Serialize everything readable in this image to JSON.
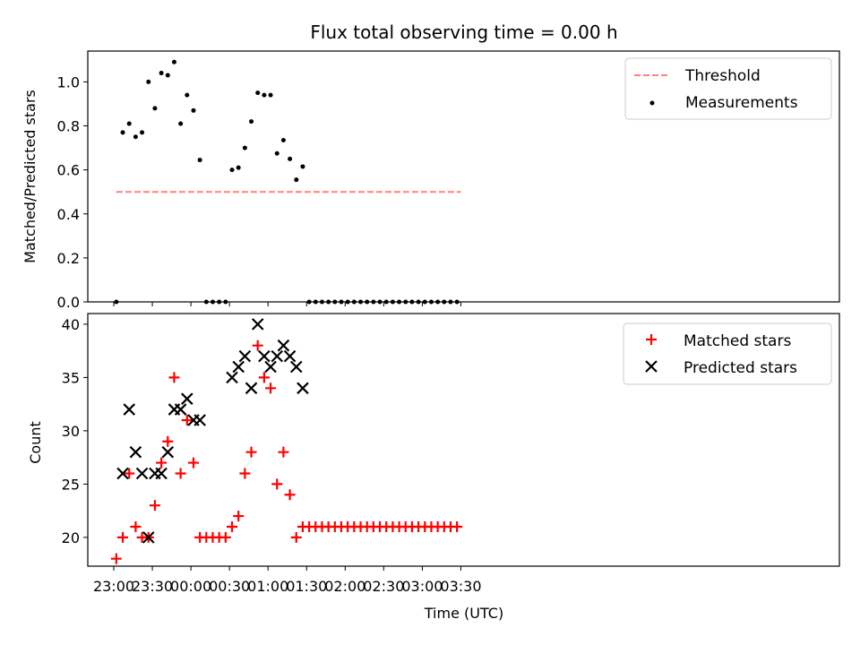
{
  "title": "Flux total observing time = 0.00 h",
  "x_ticks": [
    "23:00",
    "23:30",
    "00:00",
    "00:30",
    "01:00",
    "01:30",
    "02:00",
    "02:30",
    "03:00",
    "03:30"
  ],
  "xlabel": "Time (UTC)",
  "colors": {
    "threshold": "#ff7f7f",
    "measurements": "#000000",
    "matched": "#ff0000",
    "predicted": "#000000"
  },
  "chart_data": [
    {
      "type": "scatter",
      "ylabel": "Matched/Predicted stars",
      "ylim": [
        0,
        1.14
      ],
      "y_ticks": [
        "0.0",
        "0.2",
        "0.4",
        "0.6",
        "0.8",
        "1.0"
      ],
      "legend_position": "top-right",
      "threshold": {
        "name": "Threshold",
        "value": 0.5,
        "x_range": [
          "23:02",
          "03:30"
        ]
      },
      "series": [
        {
          "name": "Measurements",
          "x": [
            "23:02",
            "23:07",
            "23:12",
            "23:17",
            "23:22",
            "23:27",
            "23:32",
            "23:37",
            "23:42",
            "23:47",
            "23:52",
            "23:57",
            "00:02",
            "00:07",
            "00:12",
            "00:17",
            "00:22",
            "00:27",
            "00:32",
            "00:37",
            "00:42",
            "00:47",
            "00:52",
            "00:57",
            "01:02",
            "01:07",
            "01:12",
            "01:17",
            "01:22",
            "01:27",
            "01:32",
            "01:37",
            "01:42",
            "01:47",
            "01:52",
            "01:57",
            "02:02",
            "02:07",
            "02:12",
            "02:17",
            "02:22",
            "02:27",
            "02:32",
            "02:37",
            "02:42",
            "02:47",
            "02:52",
            "02:57",
            "03:02",
            "03:07",
            "03:12",
            "03:17",
            "03:22",
            "03:27"
          ],
          "y": [
            0.0,
            0.77,
            0.81,
            0.75,
            0.77,
            1.0,
            0.88,
            1.04,
            1.03,
            1.09,
            0.81,
            0.94,
            0.87,
            0.645,
            0.0,
            0.0,
            0.0,
            0.0,
            0.6,
            0.61,
            0.7,
            0.82,
            0.95,
            0.94,
            0.94,
            0.675,
            0.735,
            0.65,
            0.555,
            0.615,
            0.0,
            0.0,
            0.0,
            0.0,
            0.0,
            0.0,
            0.0,
            0.0,
            0.0,
            0.0,
            0.0,
            0.0,
            0.0,
            0.0,
            0.0,
            0.0,
            0.0,
            0.0,
            0.0,
            0.0,
            0.0,
            0.0,
            0.0,
            0.0
          ]
        }
      ]
    },
    {
      "type": "scatter",
      "ylabel": "Count",
      "ylim": [
        17.3,
        41.0
      ],
      "y_ticks": [
        "20",
        "25",
        "30",
        "35",
        "40"
      ],
      "legend_position": "top-right",
      "series": [
        {
          "name": "Matched stars",
          "x": [
            "23:02",
            "23:07",
            "23:12",
            "23:17",
            "23:22",
            "23:27",
            "23:32",
            "23:37",
            "23:42",
            "23:47",
            "23:52",
            "23:57",
            "00:02",
            "00:07",
            "00:12",
            "00:17",
            "00:22",
            "00:27",
            "00:32",
            "00:37",
            "00:42",
            "00:47",
            "00:52",
            "00:57",
            "01:02",
            "01:07",
            "01:12",
            "01:17",
            "01:22",
            "01:27",
            "01:32",
            "01:37",
            "01:42",
            "01:47",
            "01:52",
            "01:57",
            "02:02",
            "02:07",
            "02:12",
            "02:17",
            "02:22",
            "02:27",
            "02:32",
            "02:37",
            "02:42",
            "02:47",
            "02:52",
            "02:57",
            "03:02",
            "03:07",
            "03:12",
            "03:17",
            "03:22",
            "03:27"
          ],
          "y": [
            18,
            20,
            26,
            21,
            20,
            20,
            23,
            27,
            29,
            35,
            26,
            31,
            27,
            20,
            20,
            20,
            20,
            20,
            21,
            22,
            26,
            28,
            38,
            35,
            34,
            25,
            28,
            24,
            20,
            21,
            21,
            21,
            21,
            21,
            21,
            21,
            21,
            21,
            21,
            21,
            21,
            21,
            21,
            21,
            21,
            21,
            21,
            21,
            21,
            21,
            21,
            21,
            21,
            21
          ]
        },
        {
          "name": "Predicted stars",
          "x": [
            "23:07",
            "23:12",
            "23:17",
            "23:22",
            "23:27",
            "23:32",
            "23:37",
            "23:42",
            "23:47",
            "23:52",
            "23:57",
            "00:02",
            "00:07",
            "00:32",
            "00:37",
            "00:42",
            "00:47",
            "00:52",
            "00:57",
            "01:02",
            "01:07",
            "01:12",
            "01:17",
            "01:22",
            "01:27"
          ],
          "y": [
            26,
            32,
            28,
            26,
            20,
            26,
            26,
            28,
            32,
            32,
            33,
            31,
            31,
            35,
            36,
            37,
            34,
            40,
            37,
            36,
            37,
            38,
            37,
            36,
            34
          ]
        }
      ]
    }
  ]
}
